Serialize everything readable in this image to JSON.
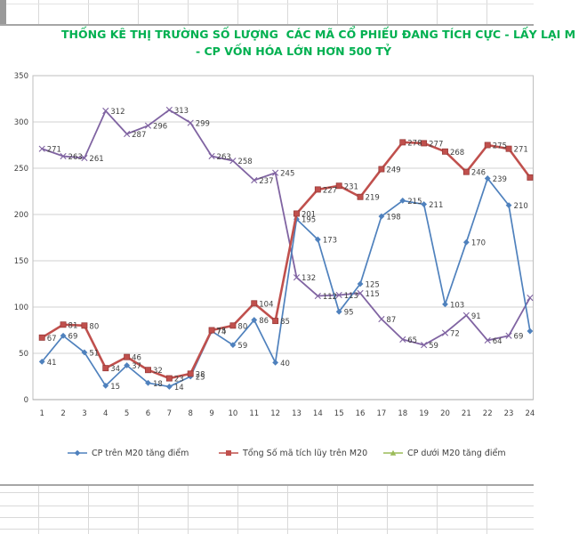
{
  "title": {
    "line1": "THỐNG KÊ THỊ TRƯỜNG SỐ LƯỢNG  CÁC MÃ CỔ PHIẾU ĐANG TÍCH CỰC - LẤY LẠI M",
    "line2": "- CP VỐN HÓA LỚN HƠN 500 TỶ",
    "color": "#00B050"
  },
  "colors": {
    "grid_line": "#d2d2d2",
    "plot_border": "#bfbfbf",
    "axis_line": "#a6a6a6",
    "tick_label": "#404040",
    "data_label": "#3f3f3f",
    "sheet_line": "#d9d9d9",
    "sheet_boundary": "#a6a6a6"
  },
  "chart_data": {
    "type": "line",
    "title": "THỐNG KÊ THỊ TRƯỜNG SỐ LƯỢNG  CÁC MÃ CỔ PHIẾU ĐANG TÍCH CỰC - LẤY LẠI M… - CP VỐN HÓA LỚN HƠN 500 TỶ",
    "xlabel": "",
    "ylabel": "",
    "x": [
      1,
      2,
      3,
      4,
      5,
      6,
      7,
      8,
      9,
      10,
      11,
      12,
      13,
      14,
      15,
      16,
      17,
      18,
      19,
      20,
      21,
      22,
      23,
      24
    ],
    "y_ticks": [
      0,
      50,
      100,
      150,
      200,
      250,
      300,
      350
    ],
    "ylim": [
      0,
      350
    ],
    "grid": true,
    "legend_position": "bottom",
    "series": [
      {
        "name": "CP trên M20 tăng điểm",
        "color": "#4F81BD",
        "marker": "diamond",
        "line_width": 1.7,
        "values": [
          41,
          69,
          51,
          15,
          37,
          18,
          14,
          25,
          74,
          59,
          86,
          40,
          195,
          173,
          95,
          125,
          198,
          215,
          211,
          103,
          170,
          239,
          210,
          74
        ],
        "labels": [
          "41",
          "69",
          "51",
          "15",
          "37",
          "18",
          "14",
          "25",
          "74",
          "59",
          "86",
          "40",
          "195",
          "173",
          "95",
          "125",
          "198",
          "215",
          "211",
          "103",
          "170",
          "239",
          "210",
          null
        ]
      },
      {
        "name": "Tổng Số mã tích lũy trên M20",
        "color": "#C0504D",
        "marker": "square",
        "line_width": 2.6,
        "values": [
          67,
          81,
          80,
          34,
          46,
          32,
          23,
          28,
          75,
          80,
          104,
          85,
          201,
          227,
          231,
          219,
          249,
          278,
          277,
          268,
          246,
          275,
          271,
          240
        ],
        "labels": [
          "67",
          "81",
          "80",
          "34",
          "46",
          "32",
          "23",
          "28",
          "75",
          "80",
          "104",
          "85",
          "201",
          "227",
          "231",
          "219",
          "249",
          "278",
          "277",
          "268",
          "246",
          "275",
          "271",
          null
        ]
      },
      {
        "name": null,
        "color": "#8064A2",
        "marker": "x",
        "line_width": 1.8,
        "values": [
          271,
          263,
          261,
          312,
          287,
          296,
          313,
          299,
          263,
          258,
          237,
          245,
          132,
          112,
          113,
          115,
          87,
          65,
          59,
          72,
          91,
          64,
          69,
          110
        ],
        "labels": [
          "271",
          "263",
          "261",
          "312",
          "287",
          "296",
          "313",
          "299",
          "263",
          "258",
          "237",
          "245",
          "132",
          "112",
          "113",
          "115",
          "87",
          "65",
          "59",
          "72",
          "91",
          "64",
          "69",
          null
        ]
      },
      {
        "name": "CP dưới M20 tăng điểm",
        "color": "#9BBB59",
        "marker": "triangle",
        "line_width": 1.7,
        "values": [],
        "labels": []
      }
    ]
  },
  "legend": {
    "items": [
      {
        "label": "CP trên M20 tăng điểm",
        "color": "#4F81BD",
        "marker": "diamond"
      },
      {
        "label": "Tổng Số mã tích lũy trên M20",
        "color": "#C0504D",
        "marker": "square"
      },
      {
        "label": "CP dưới M20 tăng điểm",
        "color": "#9BBB59",
        "marker": "triangle"
      }
    ]
  }
}
